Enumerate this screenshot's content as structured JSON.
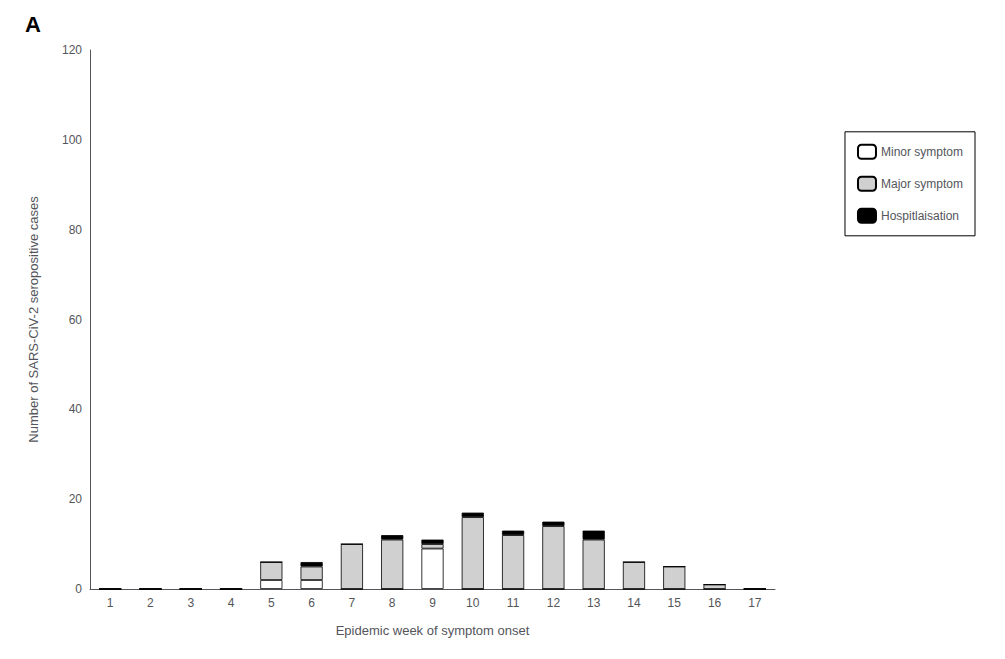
{
  "chart_data": {
    "type": "bar",
    "stacked": true,
    "annotation": "A",
    "xlabel": "Epidemic week of symptom onset",
    "ylabel": "Number of SARS-CiV-2 seropositive cases",
    "categories": [
      "1",
      "2",
      "3",
      "4",
      "5",
      "6",
      "7",
      "8",
      "9",
      "10",
      "11",
      "12",
      "13",
      "14",
      "15",
      "16",
      "17"
    ],
    "series": [
      {
        "name": "Minor symptom",
        "color": "#ffffff",
        "values": [
          0,
          0,
          0,
          0,
          2,
          2,
          0,
          0,
          9,
          0,
          0,
          0,
          0,
          0,
          0,
          0,
          0
        ]
      },
      {
        "name": "Major symptom",
        "color": "#d0d0d0",
        "values": [
          0,
          0,
          0,
          0,
          4,
          3,
          10,
          11,
          1,
          16,
          12,
          14,
          11,
          6,
          5,
          1,
          0
        ]
      },
      {
        "name": "Hospitlaisation",
        "color": "#000000",
        "values": [
          0,
          0,
          0,
          0,
          0,
          1,
          0,
          1,
          1,
          1,
          1,
          1,
          2,
          0,
          0,
          0,
          0
        ]
      }
    ],
    "ylim": [
      0,
      120
    ],
    "yticks": [
      0,
      20,
      40,
      60,
      80,
      100,
      120
    ],
    "grid": false,
    "legend": "right"
  }
}
